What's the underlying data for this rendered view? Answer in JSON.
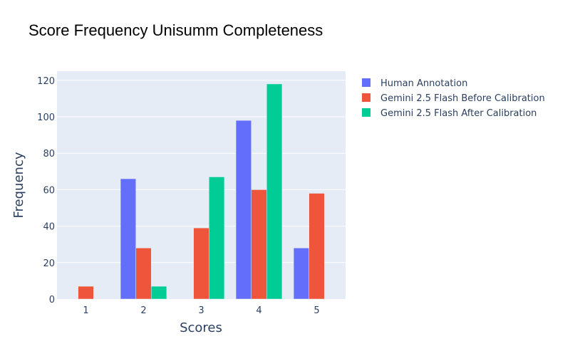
{
  "chart_data": {
    "type": "bar",
    "title": "Score Frequency Unisumm Completeness",
    "xlabel": "Scores",
    "ylabel": "Frequency",
    "categories": [
      "1",
      "2",
      "3",
      "4",
      "5"
    ],
    "ylim": [
      0,
      125
    ],
    "yticks": [
      0,
      20,
      40,
      60,
      80,
      100,
      120
    ],
    "grid": true,
    "legend_position": "right",
    "series": [
      {
        "name": "Human Annotation",
        "color": "#636efa",
        "values": [
          0,
          66,
          0,
          98,
          28
        ]
      },
      {
        "name": "Gemini 2.5 Flash Before Calibration",
        "color": "#ef553b",
        "values": [
          7,
          28,
          39,
          60,
          58
        ]
      },
      {
        "name": "Gemini 2.5 Flash After Calibration",
        "color": "#00cc96",
        "values": [
          0,
          7,
          67,
          118,
          0
        ]
      }
    ]
  }
}
